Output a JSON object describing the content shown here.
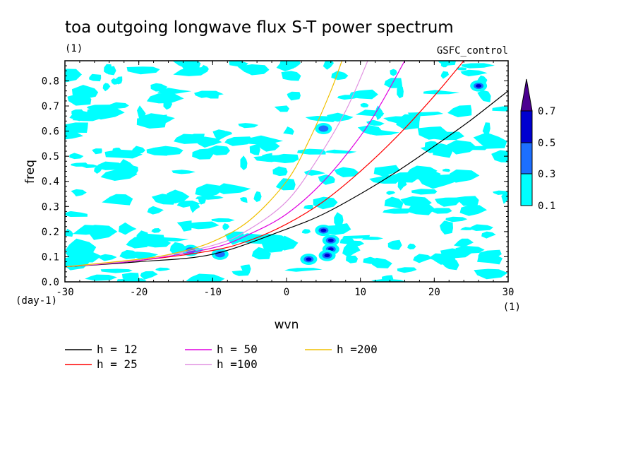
{
  "chart_data": {
    "type": "contour",
    "title": "toa outgoing longwave flux S-T power spectrum",
    "subtitle": "(1)",
    "experiment": "GSFC_control",
    "xlabel": "wvn",
    "xunit": "(1)",
    "ylabel": "freq",
    "yunit": "(day-1)",
    "xlim": [
      -30,
      30
    ],
    "ylim": [
      0,
      0.88
    ],
    "xticks": [
      -30,
      -20,
      -10,
      0,
      10,
      20,
      30
    ],
    "xtick_labels": [
      "-30",
      "-20",
      "-10",
      "0",
      "10",
      "20",
      "30"
    ],
    "yticks": [
      0,
      0.1,
      0.2,
      0.3,
      0.4,
      0.5,
      0.6,
      0.7,
      0.8
    ],
    "ytick_labels": [
      "0.0",
      "0.1",
      "0.2",
      "0.3",
      "0.4",
      "0.5",
      "0.6",
      "0.7",
      "0.8"
    ],
    "colorbar": {
      "levels": [
        "0.1",
        "0.3",
        "0.5",
        "0.7"
      ],
      "colors": [
        "#00ffff",
        "#1c6fff",
        "#0000d0",
        "#4b0090"
      ]
    },
    "dispersion_curves": [
      {
        "label": "h = 12",
        "color": "#000000",
        "x": [
          -30,
          -20,
          -10,
          0,
          5,
          10,
          15,
          20,
          25,
          30
        ],
        "y": [
          0.06,
          0.08,
          0.11,
          0.21,
          0.27,
          0.35,
          0.44,
          0.54,
          0.645,
          0.76
        ]
      },
      {
        "label": "h = 25",
        "color": "#ff0000",
        "x": [
          -30,
          -20,
          -10,
          -5,
          0,
          5,
          10,
          15,
          20,
          24
        ],
        "y": [
          0.06,
          0.085,
          0.125,
          0.165,
          0.23,
          0.32,
          0.44,
          0.58,
          0.74,
          0.88
        ]
      },
      {
        "label": "h = 50",
        "color": "#e000e0",
        "x": [
          -30,
          -20,
          -10,
          -5,
          0,
          5,
          10,
          13,
          16
        ],
        "y": [
          0.06,
          0.085,
          0.135,
          0.19,
          0.27,
          0.4,
          0.58,
          0.72,
          0.88
        ]
      },
      {
        "label": "h =100",
        "color": "#e090e0",
        "x": [
          -30,
          -20,
          -10,
          -5,
          0,
          4,
          8,
          11
        ],
        "y": [
          0.06,
          0.088,
          0.145,
          0.21,
          0.32,
          0.48,
          0.68,
          0.88
        ]
      },
      {
        "label": "h =200",
        "color": "#f0c000",
        "x": [
          -30,
          -20,
          -15,
          -10,
          -5,
          0,
          3,
          6,
          7.5
        ],
        "y": [
          0.06,
          0.09,
          0.115,
          0.16,
          0.245,
          0.4,
          0.56,
          0.76,
          0.88
        ]
      }
    ],
    "notable_maxima": [
      {
        "x": 5.0,
        "y": 0.205,
        "level": "0.5"
      },
      {
        "x": 6.0,
        "y": 0.165,
        "level": "0.5"
      },
      {
        "x": 6.0,
        "y": 0.13,
        "level": "0.5"
      },
      {
        "x": 5.5,
        "y": 0.105,
        "level": "0.5"
      },
      {
        "x": 3.0,
        "y": 0.09,
        "level": "0.5"
      },
      {
        "x": -9.0,
        "y": 0.11,
        "level": "0.3"
      },
      {
        "x": -13.0,
        "y": 0.125,
        "level": "0.3"
      },
      {
        "x": 26.0,
        "y": 0.78,
        "level": "0.5"
      },
      {
        "x": 5.0,
        "y": 0.61,
        "level": "0.3"
      }
    ],
    "legend_position": "bottom-left"
  }
}
